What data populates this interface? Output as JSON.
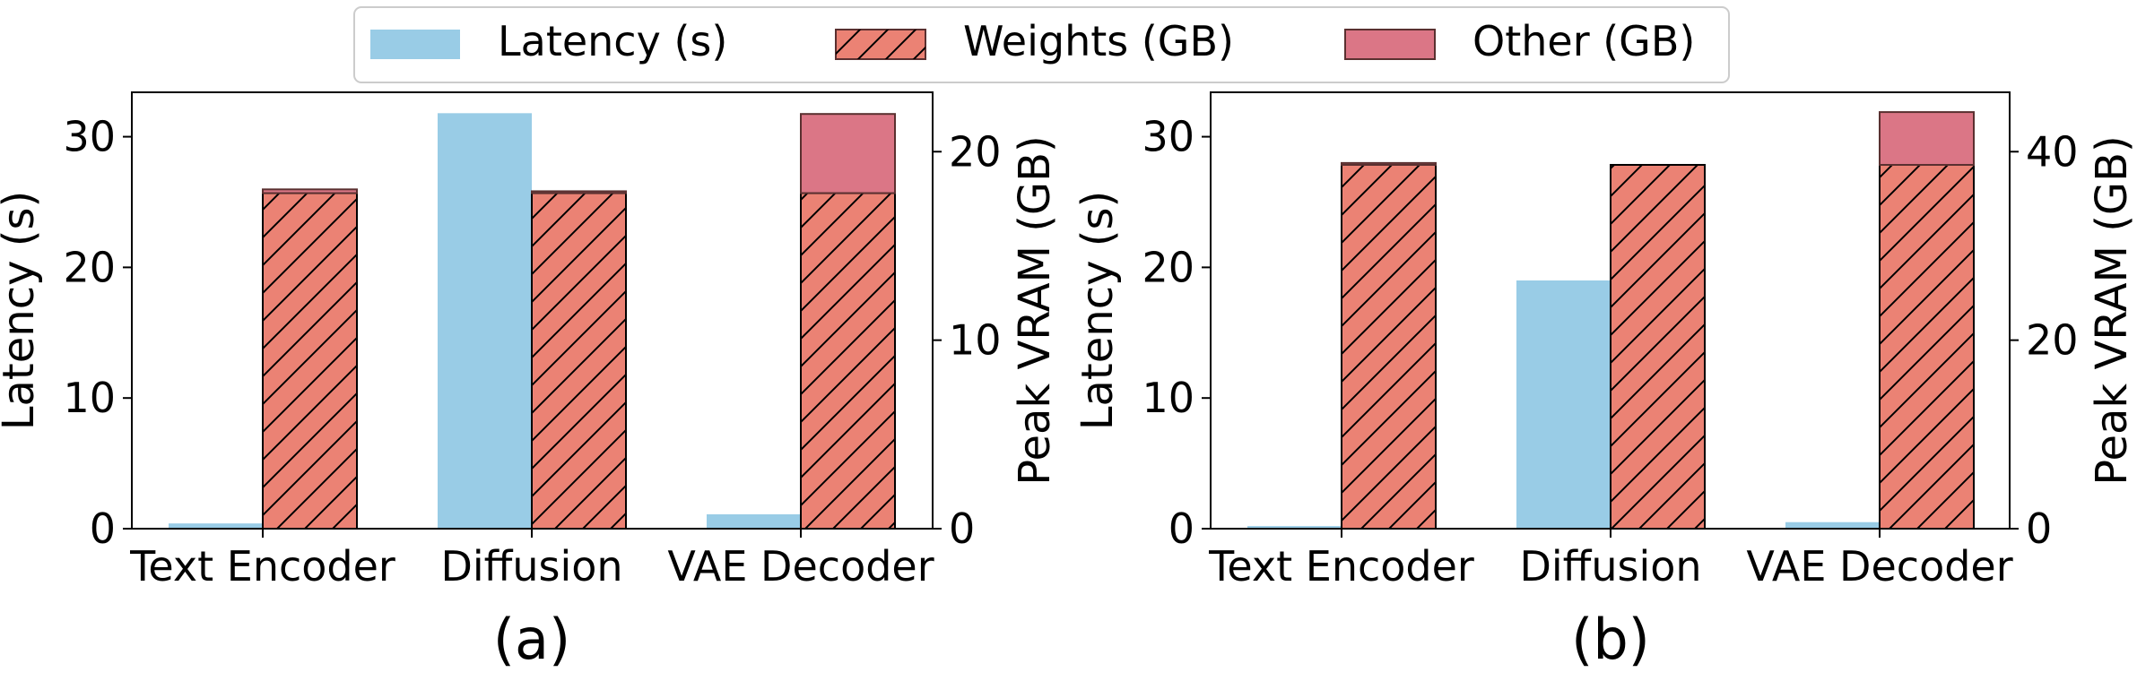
{
  "legend": {
    "items": [
      {
        "label": "Latency (s)",
        "color": "#99cce6",
        "hatch": false
      },
      {
        "label": "Weights (GB)",
        "color": "#eb8274",
        "hatch": true
      },
      {
        "label": "Other (GB)",
        "color": "#db7686",
        "hatch": false
      }
    ],
    "placement": "top-center"
  },
  "chart_data": [
    {
      "type": "bar",
      "caption": "(a)",
      "categories": [
        "Text Encoder",
        "Diffusion",
        "VAE Decoder"
      ],
      "left_axis": {
        "label": "Latency (s)",
        "ylim": [
          0,
          33.4
        ],
        "ticks": [
          0,
          10,
          20,
          30
        ]
      },
      "right_axis": {
        "label": "Peak VRAM (GB)",
        "ylim": [
          0,
          23.15
        ],
        "ticks": [
          0,
          10,
          20
        ]
      },
      "series": [
        {
          "name": "Latency (s)",
          "axis": "left",
          "values": [
            0.4,
            31.8,
            1.1
          ]
        },
        {
          "name": "Weights (GB)",
          "axis": "right",
          "stack": "vram",
          "values": [
            17.8,
            17.8,
            17.8
          ]
        },
        {
          "name": "Other (GB)",
          "axis": "right",
          "stack": "vram",
          "values": [
            0.2,
            0.1,
            4.2
          ]
        }
      ],
      "grid": false
    },
    {
      "type": "bar",
      "caption": "(b)",
      "categories": [
        "Text Encoder",
        "Diffusion",
        "VAE Decoder"
      ],
      "left_axis": {
        "label": "Latency (s)",
        "ylim": [
          0,
          33.4
        ],
        "ticks": [
          0,
          10,
          20,
          30
        ]
      },
      "right_axis": {
        "label": "Peak VRAM (GB)",
        "ylim": [
          0,
          46.3
        ],
        "ticks": [
          0,
          20,
          40
        ]
      },
      "series": [
        {
          "name": "Latency (s)",
          "axis": "left",
          "values": [
            0.2,
            19.0,
            0.5
          ]
        },
        {
          "name": "Weights (GB)",
          "axis": "right",
          "stack": "vram",
          "values": [
            38.6,
            38.6,
            38.6
          ]
        },
        {
          "name": "Other (GB)",
          "axis": "right",
          "stack": "vram",
          "values": [
            0.2,
            0.0,
            5.6
          ]
        }
      ],
      "grid": false
    }
  ]
}
